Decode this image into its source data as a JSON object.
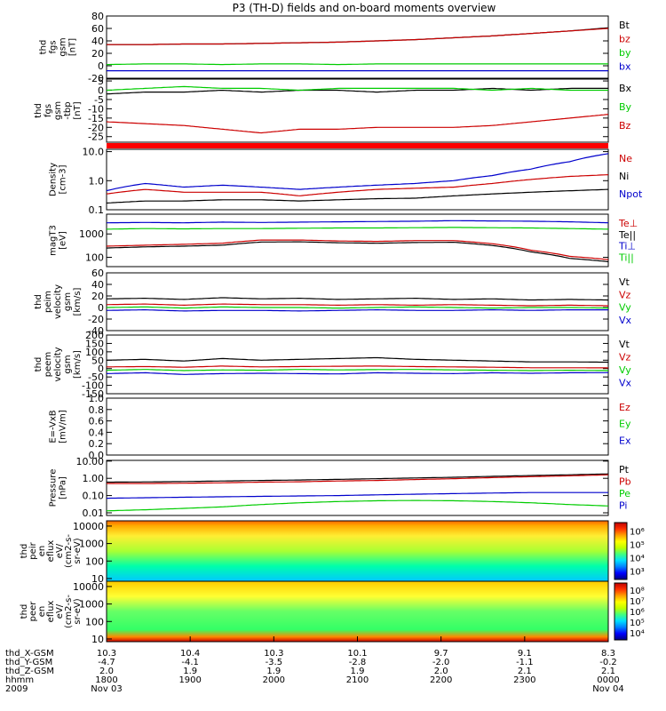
{
  "title": "P3 (TH-D) fields and on-board moments overview",
  "colors": {
    "black": "#000000",
    "red": "#cc0000",
    "green": "#00cc00",
    "blue": "#0000cc",
    "bar": "#ff0000"
  },
  "chart_data": {
    "type": "line",
    "title": "P3 (TH-D) fields and on-board moments overview",
    "x_time_ticks": [
      "1800",
      "1900",
      "2000",
      "2100",
      "2200",
      "2300",
      "0000"
    ],
    "x_time_range": [
      "2009-11-03 18:00",
      "2009-11-04 00:00"
    ],
    "panels": [
      {
        "ylabel": [
          "thd",
          "fgs",
          "gsm",
          "[nT]"
        ],
        "ylim": [
          -20,
          80
        ],
        "scale": "linear",
        "ticks": [
          "-20",
          "0",
          "20",
          "40",
          "60",
          "80"
        ],
        "tick_values": [
          -20,
          0,
          20,
          40,
          60,
          80
        ],
        "series": [
          {
            "name": "Bt",
            "color": "black",
            "values": [
              34,
              34,
              35,
              35,
              36,
              37,
              38,
              40,
              42,
              45,
              48,
              52,
              56,
              61
            ]
          },
          {
            "name": "bz",
            "color": "red",
            "values": [
              34,
              34,
              35,
              35,
              36,
              37,
              38,
              40,
              42,
              45,
              48,
              52,
              56,
              60
            ]
          },
          {
            "name": "by",
            "color": "green",
            "values": [
              2,
              3,
              3,
              2,
              3,
              3,
              2,
              3,
              3,
              3,
              3,
              3,
              3,
              3
            ]
          },
          {
            "name": "bx",
            "color": "blue",
            "values": [
              -8,
              -8,
              -8,
              -8,
              -8,
              -8,
              -8,
              -8,
              -8,
              -8,
              -8,
              -8,
              -8,
              -8
            ]
          }
        ]
      },
      {
        "ylabel": [
          "thd",
          "fgs",
          "gsm",
          "-tbp",
          "[nT]"
        ],
        "ylim": [
          -28,
          6
        ],
        "scale": "linear",
        "ticks": [
          "-25",
          "-20",
          "-15",
          "-10",
          "-5",
          "0",
          "5"
        ],
        "tick_values": [
          -25,
          -20,
          -15,
          -10,
          -5,
          0,
          5
        ],
        "series": [
          {
            "name": "Bx",
            "color": "black",
            "values": [
              -2,
              -1,
              -1,
              0,
              -1,
              0,
              0,
              -1,
              0,
              0,
              1,
              0,
              1,
              1
            ]
          },
          {
            "name": "By",
            "color": "green",
            "values": [
              0,
              1,
              2,
              1,
              1,
              0,
              1,
              1,
              1,
              1,
              0,
              1,
              0,
              0
            ]
          },
          {
            "name": "Bz",
            "color": "red",
            "values": [
              -17,
              -18,
              -19,
              -21,
              -23,
              -21,
              -21,
              -20,
              -20,
              -20,
              -19,
              -17,
              -15,
              -13
            ]
          }
        ]
      },
      {
        "ylabel": [
          "Density",
          "[cm-3]"
        ],
        "ylim": [
          0.1,
          12
        ],
        "scale": "log",
        "ticks": [
          "0.1",
          "1.0",
          "10.0"
        ],
        "tick_values": [
          0.1,
          1.0,
          10.0
        ],
        "series": [
          {
            "name": "Ne",
            "color": "red",
            "values": [
              0.35,
              0.5,
              0.4,
              0.4,
              0.4,
              0.3,
              0.4,
              0.5,
              0.55,
              0.6,
              0.8,
              1.1,
              1.4,
              1.6
            ]
          },
          {
            "name": "Ni",
            "color": "black",
            "values": [
              0.17,
              0.2,
              0.2,
              0.22,
              0.22,
              0.2,
              0.22,
              0.24,
              0.25,
              0.3,
              0.35,
              0.4,
              0.45,
              0.5
            ]
          },
          {
            "name": "Npot",
            "color": "blue",
            "values": [
              0.45,
              0.8,
              0.6,
              0.7,
              0.6,
              0.5,
              0.6,
              0.7,
              0.8,
              1.0,
              1.5,
              2.5,
              4.5,
              8.5
            ]
          }
        ]
      },
      {
        "ylabel": [
          "magT3",
          "[eV]"
        ],
        "ylim": [
          40,
          7000
        ],
        "scale": "log",
        "ticks": [
          "100",
          "1000"
        ],
        "tick_values": [
          100,
          1000
        ],
        "series": [
          {
            "name": "Te⊥",
            "color": "red",
            "values": [
              300,
              330,
              360,
              400,
              550,
              550,
              500,
              480,
              520,
              520,
              380,
              200,
              110,
              80
            ]
          },
          {
            "name": "Te||",
            "color": "black",
            "values": [
              250,
              280,
              300,
              330,
              450,
              460,
              420,
              400,
              430,
              440,
              320,
              170,
              90,
              65
            ]
          },
          {
            "name": "Ti⊥",
            "color": "blue",
            "values": [
              3000,
              3100,
              3000,
              3200,
              3100,
              3200,
              3300,
              3400,
              3500,
              3700,
              3600,
              3500,
              3300,
              3000
            ]
          },
          {
            "name": "Ti||",
            "color": "green",
            "values": [
              1600,
              1700,
              1650,
              1700,
              1700,
              1750,
              1800,
              1800,
              1850,
              1900,
              1850,
              1800,
              1700,
              1600
            ]
          }
        ]
      },
      {
        "ylabel": [
          "thd",
          "peim",
          "velocity",
          "gsm",
          "[km/s]"
        ],
        "ylim": [
          -40,
          60
        ],
        "scale": "linear",
        "ticks": [
          "-40",
          "-20",
          "0",
          "20",
          "40",
          "60"
        ],
        "tick_values": [
          -40,
          -20,
          0,
          20,
          40,
          60
        ],
        "series": [
          {
            "name": "Vt",
            "color": "black",
            "values": [
              15,
              16,
              14,
              17,
              15,
              16,
              14,
              15,
              16,
              14,
              15,
              13,
              14,
              13
            ]
          },
          {
            "name": "Vz",
            "color": "red",
            "values": [
              5,
              6,
              4,
              6,
              5,
              5,
              4,
              5,
              4,
              5,
              4,
              3,
              4,
              3
            ]
          },
          {
            "name": "Vy",
            "color": "green",
            "values": [
              0,
              1,
              -1,
              1,
              0,
              0,
              -1,
              0,
              1,
              0,
              -1,
              0,
              0,
              -1
            ]
          },
          {
            "name": "Vx",
            "color": "blue",
            "values": [
              -5,
              -4,
              -6,
              -5,
              -5,
              -6,
              -5,
              -4,
              -5,
              -5,
              -4,
              -5,
              -4,
              -4
            ]
          }
        ]
      },
      {
        "ylabel": [
          "thd",
          "peem",
          "velocity",
          "gsm",
          "[km/s]"
        ],
        "ylim": [
          -150,
          200
        ],
        "scale": "linear",
        "ticks": [
          "-150",
          "-100",
          "-50",
          "0",
          "50",
          "100",
          "150",
          "200"
        ],
        "tick_values": [
          -150,
          -100,
          -50,
          0,
          50,
          100,
          150,
          200
        ],
        "series": [
          {
            "name": "Vt",
            "color": "black",
            "values": [
              50,
              55,
              45,
              60,
              50,
              55,
              60,
              65,
              55,
              50,
              45,
              40,
              40,
              38
            ]
          },
          {
            "name": "Vz",
            "color": "red",
            "values": [
              10,
              12,
              8,
              15,
              10,
              12,
              14,
              15,
              12,
              10,
              8,
              5,
              5,
              4
            ]
          },
          {
            "name": "Vy",
            "color": "green",
            "values": [
              -10,
              -5,
              -12,
              -8,
              -10,
              -5,
              -8,
              -6,
              -5,
              -8,
              -10,
              -12,
              -10,
              -12
            ]
          },
          {
            "name": "Vx",
            "color": "blue",
            "values": [
              -30,
              -25,
              -35,
              -30,
              -28,
              -30,
              -32,
              -25,
              -28,
              -30,
              -25,
              -28,
              -25,
              -24
            ]
          }
        ]
      },
      {
        "ylabel": [
          "E=-VxB",
          "[mV/m]"
        ],
        "ylim": [
          0,
          1.0
        ],
        "scale": "linear",
        "ticks": [
          "0.0",
          "0.2",
          "0.4",
          "0.6",
          "0.8",
          "1.0"
        ],
        "tick_values": [
          0,
          0.2,
          0.4,
          0.6,
          0.8,
          1.0
        ],
        "series": [
          {
            "name": "Ez",
            "color": "red",
            "values": []
          },
          {
            "name": "Ey",
            "color": "green",
            "values": []
          },
          {
            "name": "Ex",
            "color": "blue",
            "values": []
          }
        ]
      },
      {
        "ylabel": [
          "Pressure",
          "[nPa]"
        ],
        "ylim": [
          0.007,
          11
        ],
        "scale": "log",
        "ticks": [
          "0.01",
          "0.10",
          "1.00",
          "10.00"
        ],
        "tick_values": [
          0.01,
          0.1,
          1.0,
          10.0
        ],
        "series": [
          {
            "name": "Pt",
            "color": "black",
            "values": [
              0.6,
              0.62,
              0.65,
              0.7,
              0.75,
              0.8,
              0.87,
              0.95,
              1.05,
              1.15,
              1.3,
              1.45,
              1.6,
              1.8
            ]
          },
          {
            "name": "Pb",
            "color": "red",
            "values": [
              0.5,
              0.5,
              0.52,
              0.55,
              0.6,
              0.63,
              0.7,
              0.75,
              0.85,
              0.95,
              1.1,
              1.25,
              1.4,
              1.6
            ]
          },
          {
            "name": "Pe",
            "color": "green",
            "values": [
              0.013,
              0.015,
              0.018,
              0.022,
              0.03,
              0.038,
              0.045,
              0.05,
              0.052,
              0.05,
              0.045,
              0.038,
              0.03,
              0.025
            ]
          },
          {
            "name": "Pi",
            "color": "blue",
            "values": [
              0.07,
              0.075,
              0.08,
              0.085,
              0.09,
              0.095,
              0.1,
              0.11,
              0.12,
              0.13,
              0.14,
              0.15,
              0.15,
              0.15
            ]
          }
        ]
      }
    ],
    "spectrograms": [
      {
        "ylabel": [
          "thd",
          "peir",
          "en",
          "eflux",
          "eV/",
          "(cm2-s-",
          "sr-eV)"
        ],
        "yticks": [
          "10",
          "100",
          "1000",
          "10000"
        ],
        "colorbar_ticks": [
          "10³",
          "10⁴",
          "10⁵",
          "10⁶"
        ]
      },
      {
        "ylabel": [
          "thd",
          "peer",
          "en",
          "eflux",
          "eV/",
          "(cm2-s-",
          "sr-eV)"
        ],
        "yticks": [
          "10",
          "100",
          "1000",
          "10000"
        ],
        "colorbar_ticks": [
          "10⁴",
          "10⁵",
          "10⁶",
          "10⁷",
          "10⁸"
        ]
      }
    ],
    "ephemeris": {
      "rows": [
        {
          "label": "thd_X-GSM",
          "values": [
            "10.3",
            "10.4",
            "10.3",
            "10.1",
            "9.7",
            "9.1",
            "8.3"
          ]
        },
        {
          "label": "thd_Y-GSM",
          "values": [
            "-4.7",
            "-4.1",
            "-3.5",
            "-2.8",
            "-2.0",
            "-1.1",
            "-0.2"
          ]
        },
        {
          "label": "thd_Z-GSM",
          "values": [
            "2.0",
            "1.9",
            "1.9",
            "1.9",
            "2.0",
            "2.1",
            "2.1"
          ]
        },
        {
          "label": "hhmm",
          "values": [
            "1800",
            "1900",
            "2000",
            "2100",
            "2200",
            "2300",
            "0000"
          ]
        }
      ],
      "year": "2009",
      "dates": [
        "Nov 03",
        "Nov 04"
      ]
    }
  }
}
